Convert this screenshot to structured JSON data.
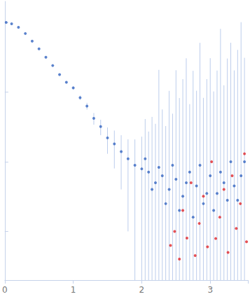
{
  "chart_data": {
    "type": "scatter",
    "log": "y",
    "grid": false,
    "tick_labels": "x",
    "xlim": [
      0,
      3.55
    ],
    "xticks": [
      0,
      1,
      2,
      3
    ],
    "ylim": [
      0.002,
      20
    ],
    "yticks": [
      0.01,
      0.1,
      1,
      10
    ],
    "series": [
      {
        "color": "#3565c0",
        "marker": "circle",
        "x": [
          0.02,
          0.1,
          0.2,
          0.3,
          0.4,
          0.5,
          0.6,
          0.7,
          0.8,
          0.9,
          1.0,
          1.1,
          1.2,
          1.3,
          1.4,
          1.5,
          1.6,
          1.7,
          1.8,
          1.9,
          2.0,
          2.05,
          2.1,
          2.15,
          2.2,
          2.25,
          2.3,
          2.35,
          2.4,
          2.45,
          2.5,
          2.55,
          2.6,
          2.65,
          2.7,
          2.75,
          2.8,
          2.85,
          2.9,
          2.95,
          3.0,
          3.05,
          3.1,
          3.15,
          3.2,
          3.25,
          3.3,
          3.35,
          3.4,
          3.45,
          3.5
        ],
        "values": [
          10,
          9.55,
          8.51,
          6.92,
          5.37,
          4.17,
          3.16,
          2.4,
          1.78,
          1.38,
          1.15,
          0.83,
          0.63,
          0.42,
          0.32,
          0.22,
          0.18,
          0.14,
          0.11,
          0.089,
          0.079,
          0.11,
          0.071,
          0.04,
          0.05,
          0.083,
          0.063,
          0.025,
          0.04,
          0.089,
          0.056,
          0.02,
          0.032,
          0.05,
          0.071,
          0.016,
          0.045,
          0.089,
          0.025,
          0.035,
          0.063,
          0.02,
          0.035,
          0.071,
          0.05,
          0.028,
          0.1,
          0.045,
          0.028,
          0.063,
          0.1
        ],
        "errors": [
          0.05,
          0.05,
          0.05,
          0.05,
          0.04,
          0.04,
          0.04,
          0.04,
          0.04,
          0.05,
          0.06,
          0.06,
          0.07,
          0.08,
          0.08,
          0.09,
          0.1,
          0.1,
          0.1,
          0.12,
          0.15,
          0.3,
          0.2,
          0.4,
          0.3,
          2,
          0.5,
          0.3,
          1,
          0.4,
          2,
          0.8,
          1.5,
          3,
          0.6,
          2,
          1,
          5,
          0.8,
          1.5,
          3,
          1,
          2,
          8,
          1.2,
          3,
          5,
          2,
          4,
          10,
          3
        ]
      },
      {
        "color": "#e0262b",
        "marker": "circle",
        "x": [
          2.42,
          2.48,
          2.55,
          2.6,
          2.66,
          2.72,
          2.78,
          2.84,
          2.9,
          2.96,
          3.02,
          3.08,
          3.14,
          3.2,
          3.26,
          3.32,
          3.38,
          3.44,
          3.5,
          3.53
        ],
        "values": [
          0.0063,
          0.01,
          0.004,
          0.02,
          0.008,
          0.05,
          0.0045,
          0.013,
          0.032,
          0.006,
          0.1,
          0.0079,
          0.016,
          0.04,
          0.005,
          0.063,
          0.011,
          0.025,
          0.13,
          0.0071
        ]
      }
    ]
  }
}
